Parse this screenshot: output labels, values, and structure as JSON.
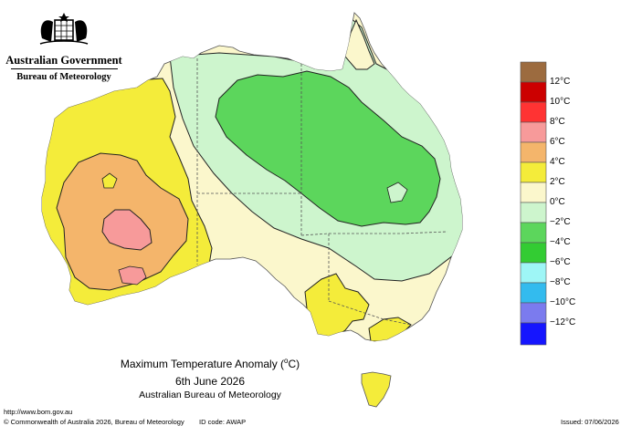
{
  "header": {
    "government": "Australian Government",
    "bureau": "Bureau of Meteorology"
  },
  "title": {
    "main_prefix": "Maximum Temperature Anomaly (",
    "main_unit": "o",
    "main_suffix": "C)",
    "date": "6th June 2026",
    "organisation": "Australian Bureau of Meteorology"
  },
  "footer": {
    "url": "http://www.bom.gov.au",
    "copyright": "© Commonwealth of Australia 2026, Bureau of Meteorology",
    "id_code": "ID code: AWAP",
    "issued": "Issued: 07/06/2026"
  },
  "legend": {
    "labels": [
      "12°C",
      "10°C",
      "8°C",
      "6°C",
      "4°C",
      "2°C",
      "0°C",
      "−2°C",
      "−4°C",
      "−6°C",
      "−8°C",
      "−10°C",
      "−12°C"
    ],
    "colors": [
      "#9c6b3f",
      "#cc0000",
      "#ff3333",
      "#f79a9a",
      "#f4b56b",
      "#f4ec3a",
      "#fbf7cc",
      "#cdf5cd",
      "#5cd65c",
      "#33cc33",
      "#9ef6f6",
      "#33bbee",
      "#7b7bee",
      "#1515ff"
    ]
  },
  "map": {
    "regions": [
      {
        "name": "above-4-west",
        "anomaly_range": "4 to 6",
        "color": "#f4b56b"
      },
      {
        "name": "above-6-west",
        "anomaly_range": "6 to 8",
        "color": "#f79a9a"
      },
      {
        "name": "below-minus-2-east",
        "anomaly_range": "-4 to -2",
        "color": "#5cd65c"
      }
    ]
  }
}
